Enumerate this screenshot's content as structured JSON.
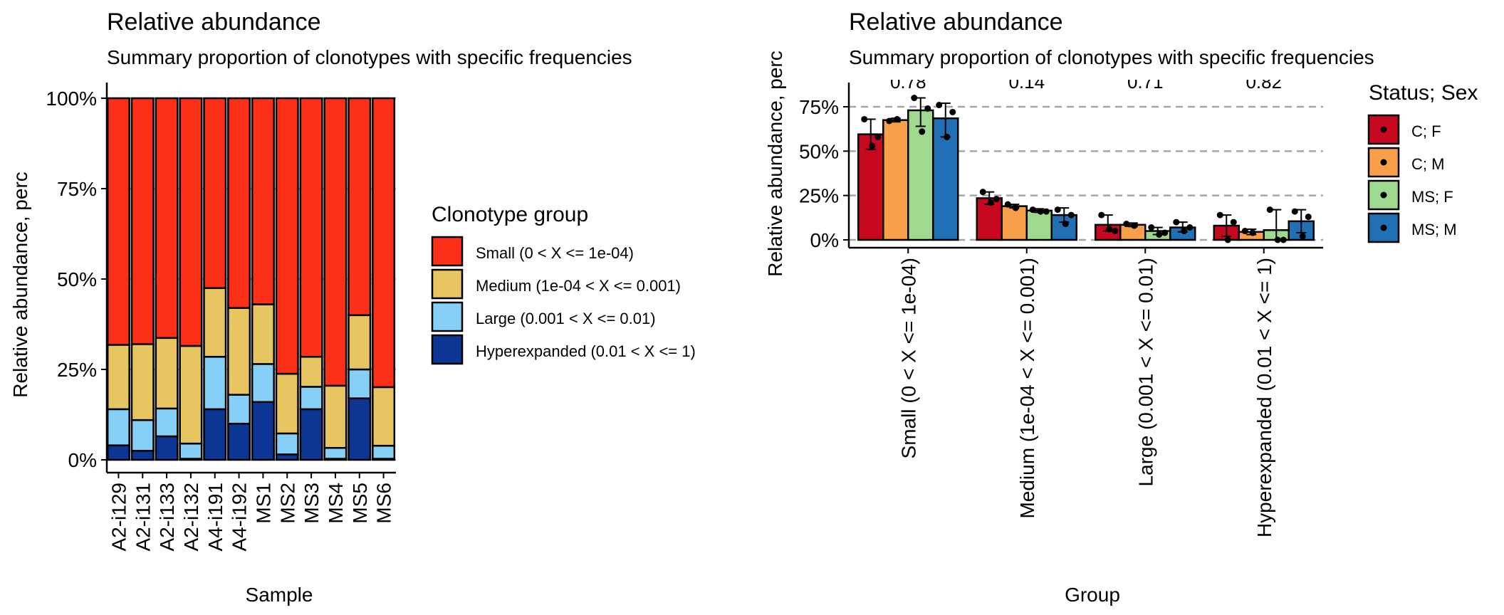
{
  "chart_data": [
    {
      "type": "bar",
      "stacked": true,
      "title": "Relative abundance",
      "subtitle": "Summary proportion of clonotypes with specific frequencies",
      "xlabel": "Sample",
      "ylabel": "Relative abundance, perc",
      "ylim": [
        0,
        100
      ],
      "yticks": [
        "0%",
        "25%",
        "50%",
        "75%",
        "100%"
      ],
      "grid": "horizontal major",
      "legend_position": "right",
      "legend_title": "Clonotype group",
      "categories": [
        "A2-i129",
        "A2-i131",
        "A2-i133",
        "A2-i132",
        "A4-i191",
        "A4-i192",
        "MS1",
        "MS2",
        "MS3",
        "MS4",
        "MS5",
        "MS6"
      ],
      "series": [
        {
          "name": "Hyperexpanded (0.01 < X <= 1)",
          "color": "#0c3594",
          "values": [
            4,
            2.5,
            6.5,
            0.3,
            14,
            10,
            16,
            1.5,
            14,
            0.3,
            17,
            0.3
          ]
        },
        {
          "name": "Large (0.001 < X <= 0.01)",
          "color": "#86cff7",
          "values": [
            10,
            8.5,
            7.7,
            4.2,
            14.5,
            8,
            10.5,
            5.8,
            6.2,
            3,
            8,
            3.6
          ]
        },
        {
          "name": "Medium (1e-04 < X <= 0.001)",
          "color": "#e7c561",
          "values": [
            17.8,
            21,
            19.5,
            27,
            19,
            24,
            16.5,
            16.5,
            8.3,
            17.2,
            15,
            16.2
          ]
        },
        {
          "name": "Small (0 < X <= 1e-04)",
          "color": "#fc3018",
          "values": [
            68.2,
            68,
            66.3,
            68.5,
            52.5,
            58,
            57,
            76.2,
            71.5,
            79.5,
            60,
            79.9
          ]
        }
      ]
    },
    {
      "type": "bar",
      "grouped": true,
      "title": "Relative abundance",
      "subtitle": "Summary proportion of clonotypes with specific frequencies",
      "xlabel": "Group",
      "ylabel": "Relative abundance, perc",
      "ylim": [
        0,
        75
      ],
      "yticks": [
        "0%",
        "25%",
        "50%",
        "75%"
      ],
      "grid": "horizontal dashed",
      "legend_position": "right",
      "legend_title": "Status; Sex",
      "categories": [
        "Small (0 < X <= 1e-04)",
        "Medium (1e-04 < X <= 0.001)",
        "Large (0.001 < X <= 0.01)",
        "Hyperexpanded (0.01 < X <= 1)"
      ],
      "pvalues": [
        "0.78",
        "0.14",
        "0.71",
        "0.82"
      ],
      "series": [
        {
          "name": "C; F",
          "color": "#c8081f",
          "values": [
            59.5,
            23.5,
            8.5,
            8
          ],
          "errors": [
            [
              51,
              68
            ],
            [
              20,
              27
            ],
            [
              5,
              14
            ],
            [
              2,
              14
            ]
          ],
          "points": [
            [
              68,
              53,
              58
            ],
            [
              27,
              21,
              23
            ],
            [
              14,
              6,
              5
            ],
            [
              14,
              0,
              10
            ]
          ]
        },
        {
          "name": "C; M",
          "color": "#f99f49",
          "values": [
            67.5,
            19,
            8.5,
            4.5
          ],
          "errors": [
            [
              66.5,
              68.5
            ],
            [
              18,
              20
            ],
            [
              7.5,
              9.5
            ],
            [
              3,
              6
            ]
          ],
          "points": [
            [
              67,
              68
            ],
            [
              20,
              18
            ],
            [
              9,
              8
            ],
            [
              5,
              4
            ]
          ]
        },
        {
          "name": "MS; F",
          "color": "#9fd98f",
          "values": [
            73,
            16.5,
            5,
            5.5
          ],
          "errors": [
            [
              64,
              80
            ],
            [
              15.5,
              17.5
            ],
            [
              3,
              7
            ],
            [
              0,
              17
            ]
          ],
          "points": [
            [
              80,
              61,
              74
            ],
            [
              17,
              16,
              16
            ],
            [
              7,
              3,
              4
            ],
            [
              17,
              0,
              0
            ]
          ]
        },
        {
          "name": "MS; M",
          "color": "#216fb5",
          "values": [
            68.5,
            14,
            7,
            10.5
          ],
          "errors": [
            [
              58,
              77
            ],
            [
              10,
              18
            ],
            [
              4.5,
              10
            ],
            [
              4,
              17
            ]
          ],
          "points": [
            [
              76,
              58,
              72
            ],
            [
              17,
              9,
              14
            ],
            [
              10,
              5,
              7
            ],
            [
              16,
              2,
              13
            ]
          ]
        }
      ]
    }
  ]
}
